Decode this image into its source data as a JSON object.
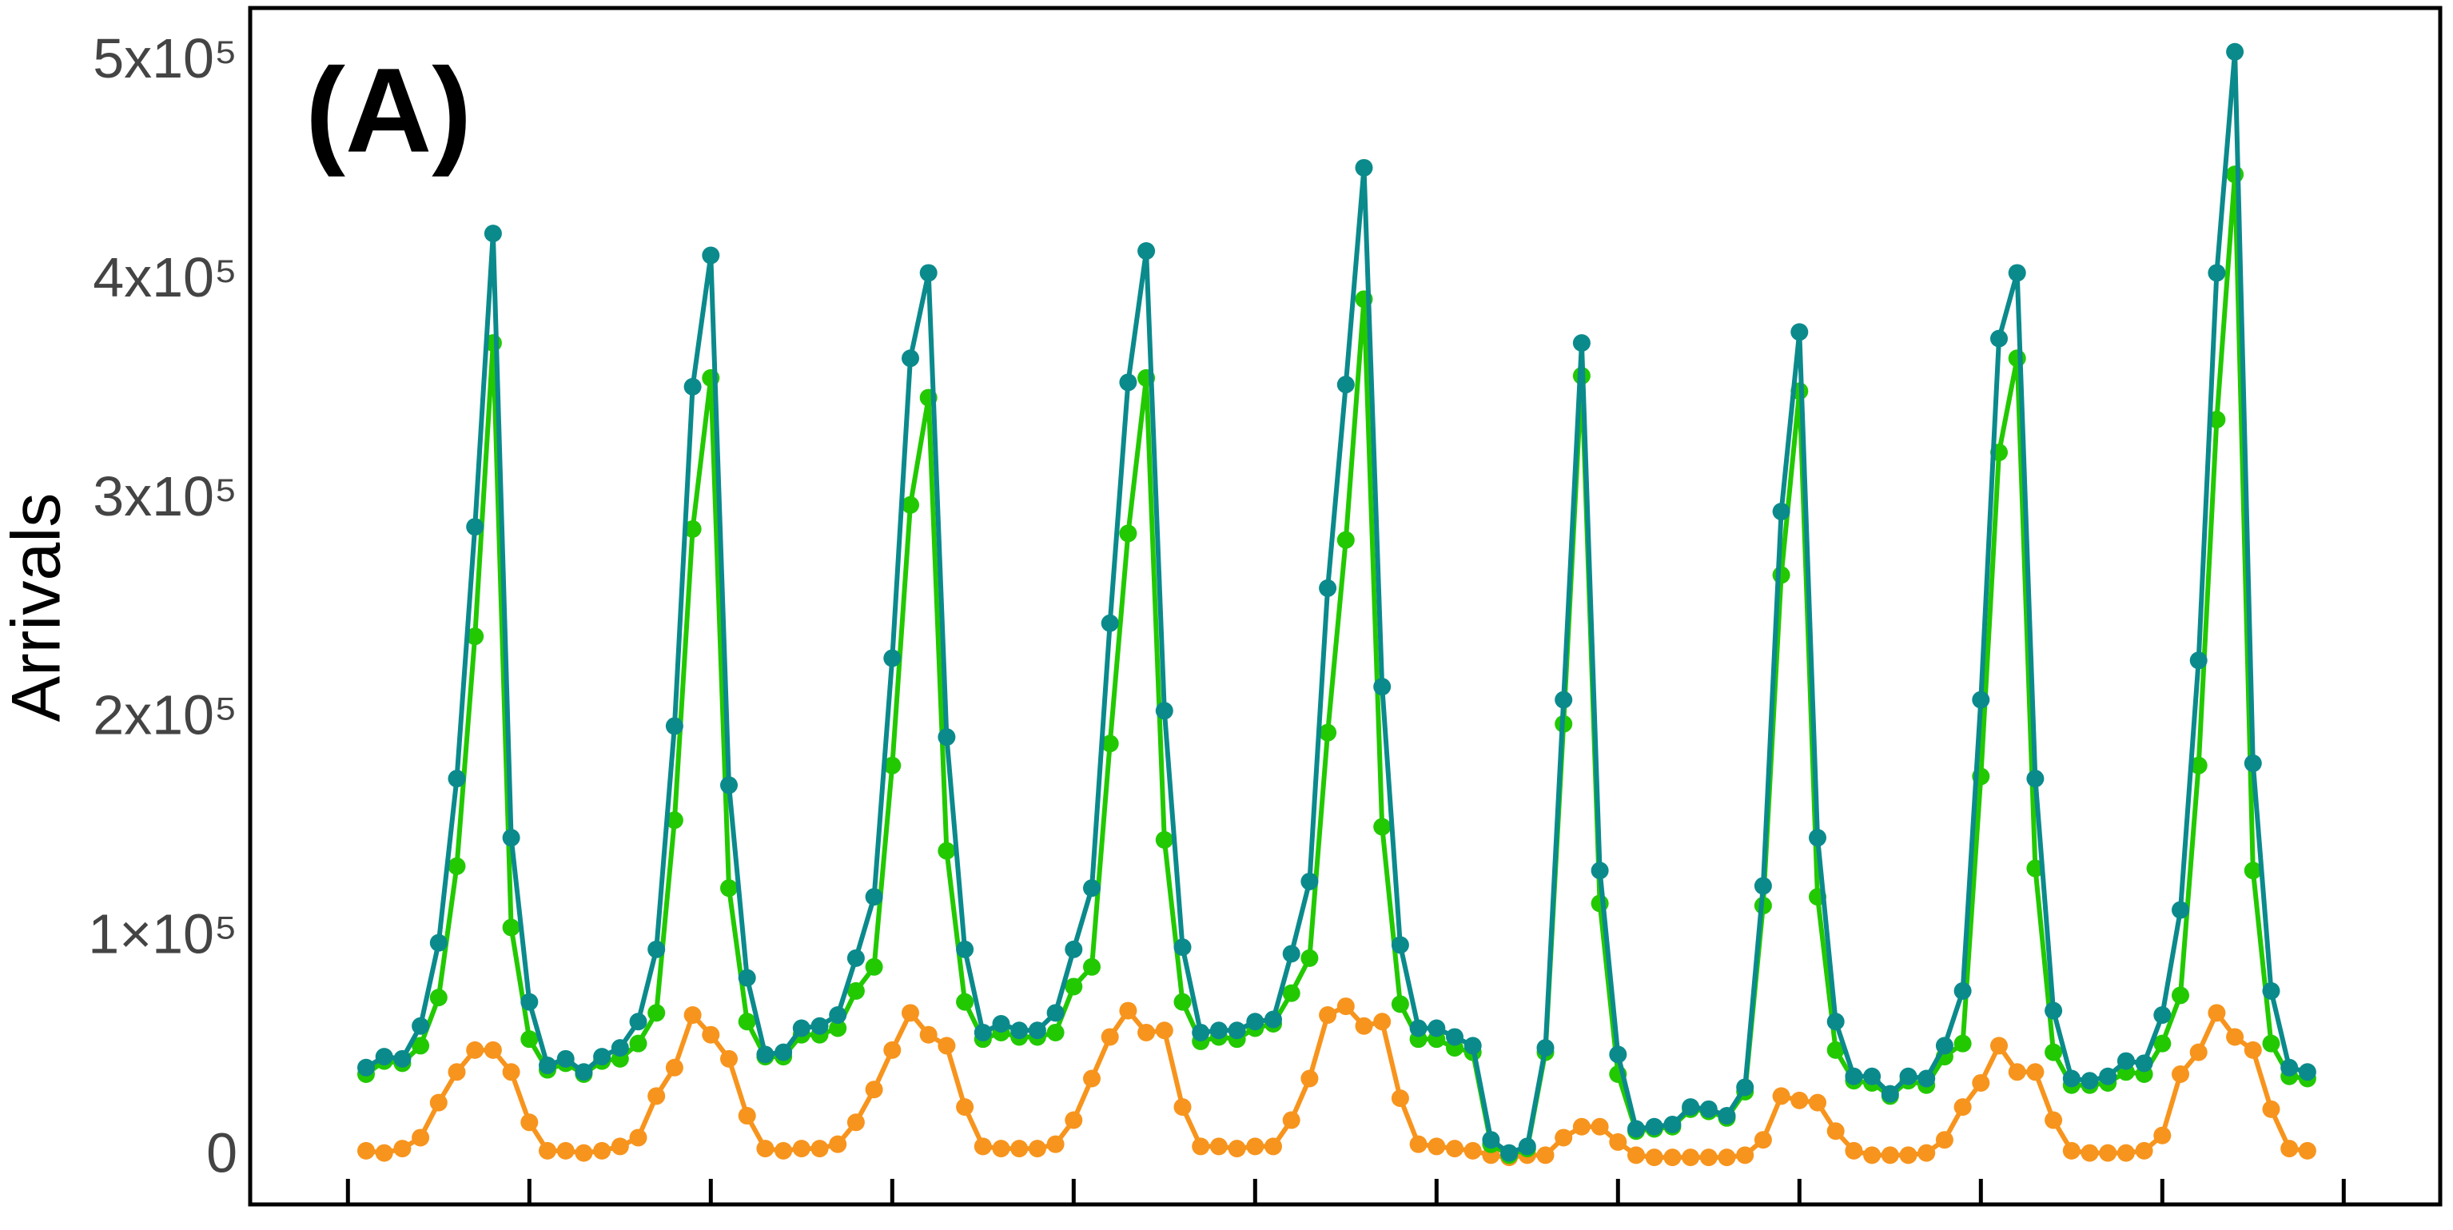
{
  "chart_data": {
    "type": "line",
    "title": "(A)",
    "y_label": "Arrivals",
    "categories": [
      null,
      null,
      null,
      null,
      null,
      null,
      null,
      null,
      null,
      null,
      null,
      null,
      null,
      null,
      null,
      null,
      null,
      null,
      null,
      null,
      null,
      null,
      null,
      null,
      null,
      null,
      null,
      null,
      null,
      null,
      null,
      null,
      null,
      null,
      null,
      null,
      null,
      null,
      null,
      null,
      null,
      null,
      null,
      null,
      null,
      null,
      null,
      null,
      null,
      null,
      null,
      null,
      null,
      null,
      null,
      null,
      null,
      null,
      null,
      null,
      null,
      null,
      null,
      null,
      null,
      null,
      null,
      null,
      null,
      null,
      null,
      null,
      null,
      null,
      null,
      null,
      null,
      null,
      null,
      null,
      null,
      null,
      null,
      null,
      null,
      null,
      null,
      null,
      null,
      null,
      null,
      null,
      null,
      null,
      null,
      null,
      null,
      null,
      null,
      null,
      null,
      null,
      null,
      null,
      null,
      null,
      null,
      null
    ],
    "series": [
      {
        "color": "#f7941d",
        "values": [
          3000,
          2000,
          4000,
          9000,
          25000,
          39000,
          49000,
          49000,
          39000,
          16000,
          3000,
          3000,
          2000,
          3000,
          5000,
          9000,
          28000,
          41000,
          65000,
          56000,
          45000,
          19000,
          4000,
          3000,
          4000,
          4000,
          6000,
          16000,
          31000,
          49000,
          66000,
          56000,
          51000,
          23000,
          5000,
          4000,
          4000,
          4000,
          6000,
          17000,
          36000,
          55000,
          67000,
          57000,
          58000,
          23000,
          5000,
          5000,
          4000,
          5000,
          5000,
          17000,
          36000,
          65000,
          69000,
          60000,
          62000,
          27000,
          6000,
          5000,
          4000,
          3000,
          1000,
          0,
          1000,
          1000,
          9000,
          14000,
          14000,
          7000,
          1000,
          0,
          0,
          0,
          0,
          0,
          1000,
          8000,
          28000,
          26000,
          25000,
          12000,
          3000,
          1000,
          1000,
          1000,
          2000,
          8000,
          23000,
          34000,
          51000,
          39000,
          39000,
          17000,
          3000,
          2000,
          2000,
          2000,
          3000,
          10000,
          38000,
          48000,
          66000,
          55000,
          49000,
          22000,
          4000,
          3000
        ]
      },
      {
        "color": "#22c900",
        "values": [
          38000,
          44000,
          43000,
          51000,
          73000,
          133000,
          238000,
          372000,
          105000,
          54000,
          40000,
          43000,
          38000,
          44000,
          45000,
          52000,
          66000,
          154000,
          287000,
          356000,
          123000,
          62000,
          46000,
          46000,
          56000,
          56000,
          59000,
          76000,
          87000,
          179000,
          298000,
          347000,
          140000,
          71000,
          54000,
          57000,
          55000,
          55000,
          57000,
          78000,
          87000,
          189000,
          285000,
          356000,
          145000,
          71000,
          53000,
          55000,
          54000,
          59000,
          61000,
          75000,
          91000,
          194000,
          282000,
          392000,
          151000,
          70000,
          54000,
          54000,
          50000,
          48000,
          6000,
          1000,
          4000,
          48000,
          198000,
          357000,
          116000,
          38000,
          12000,
          13000,
          14000,
          22000,
          21000,
          18000,
          30000,
          115000,
          266000,
          350000,
          119000,
          49000,
          35000,
          34000,
          28000,
          35000,
          33000,
          46000,
          52000,
          174000,
          322000,
          365000,
          132000,
          48000,
          33000,
          33000,
          34000,
          39000,
          38000,
          52000,
          74000,
          179000,
          337000,
          449000,
          131000,
          52000,
          37000,
          36000
        ]
      },
      {
        "color": "#0b8a8c",
        "values": [
          41000,
          46000,
          45000,
          60000,
          98000,
          173000,
          288000,
          422000,
          146000,
          71000,
          42000,
          45000,
          39000,
          46000,
          50000,
          62000,
          95000,
          197000,
          352000,
          412000,
          170000,
          82000,
          47000,
          48000,
          59000,
          60000,
          65000,
          91000,
          119000,
          228000,
          365000,
          404000,
          192000,
          95000,
          57000,
          61000,
          58000,
          58000,
          66000,
          95000,
          123000,
          244000,
          354000,
          414000,
          204000,
          96000,
          57000,
          58000,
          58000,
          62000,
          63000,
          93000,
          126000,
          260000,
          353000,
          452000,
          215000,
          97000,
          59000,
          59000,
          55000,
          51000,
          8000,
          2000,
          5000,
          50000,
          209000,
          372000,
          131000,
          47000,
          13000,
          14000,
          15000,
          23000,
          22000,
          19000,
          32000,
          124000,
          295000,
          377000,
          146000,
          62000,
          37000,
          37000,
          29000,
          37000,
          36000,
          51000,
          76000,
          209000,
          374000,
          404000,
          173000,
          67000,
          36000,
          35000,
          37000,
          44000,
          43000,
          65000,
          113000,
          227000,
          404000,
          505000,
          180000,
          76000,
          41000,
          39000
        ]
      }
    ],
    "ylim": [
      -21500,
      525000
    ],
    "yticks": [
      0,
      {
        "value": 100000,
        "label": "1×10⁵"
      },
      {
        "value": 200000,
        "label": "2x10⁵"
      },
      {
        "value": 300000,
        "label": "3x10⁵"
      },
      {
        "value": 400000,
        "label": "4x10⁵"
      },
      {
        "value": 500000,
        "label": "5x10⁵"
      }
    ]
  }
}
